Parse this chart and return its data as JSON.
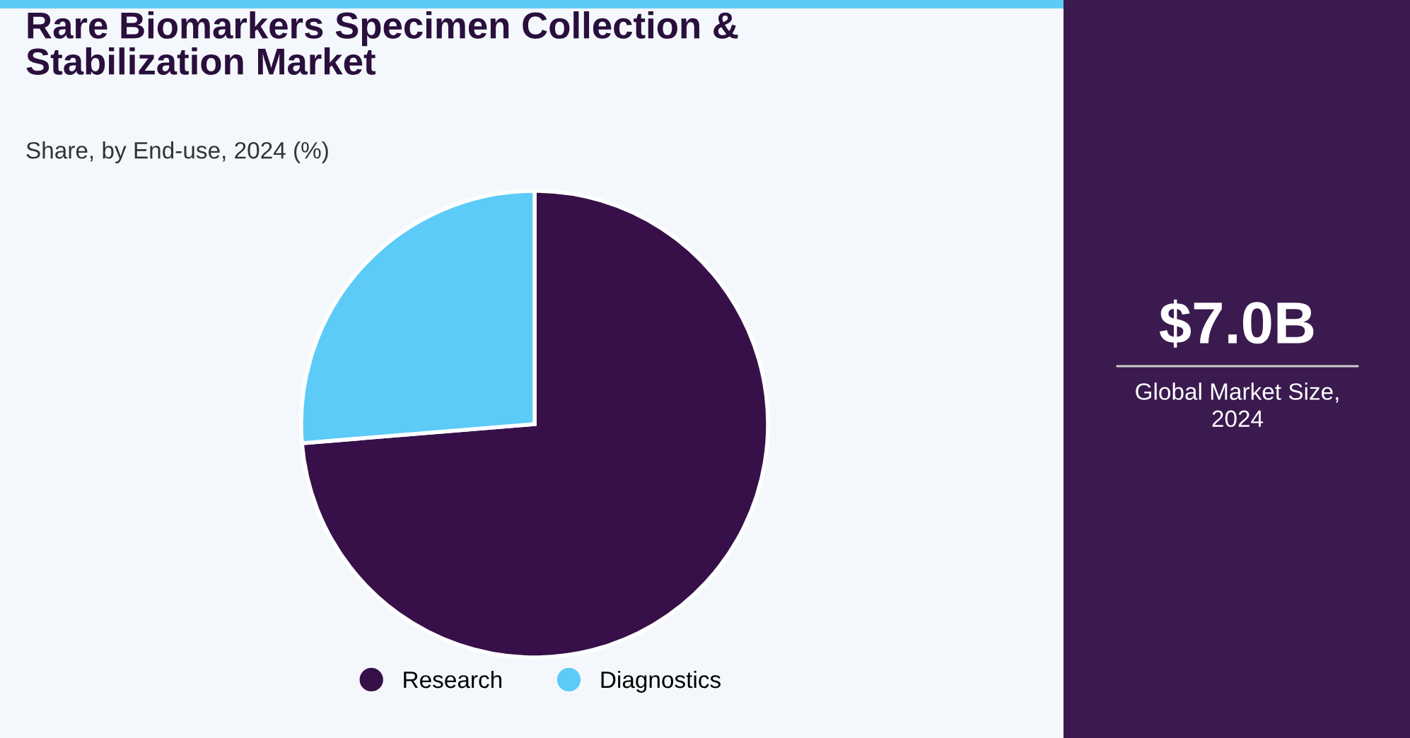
{
  "chart_data": {
    "type": "pie",
    "title": "Rare Biomarkers Specimen Collection &\nStabilization Market",
    "subtitle": "Share, by End-use, 2024 (%)",
    "categories": [
      "Research",
      "Diagnostics"
    ],
    "values": [
      73.7,
      26.3
    ],
    "colors": [
      "#37104a",
      "#5ccbf7"
    ],
    "legend": "bottom",
    "annotations": [
      "$7.0B",
      "Global Market Size,\n2024"
    ]
  }
}
